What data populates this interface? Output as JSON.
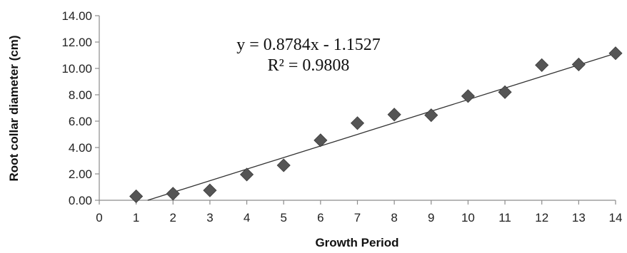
{
  "chart_data": {
    "type": "scatter",
    "title": "",
    "xlabel": "Growth Period",
    "ylabel": "Root collar diameter (cm)",
    "xlim": [
      0,
      14
    ],
    "ylim": [
      0,
      14
    ],
    "x_ticks": [
      "0",
      "1",
      "2",
      "3",
      "4",
      "5",
      "6",
      "7",
      "8",
      "9",
      "10",
      "11",
      "12",
      "13",
      "14"
    ],
    "y_ticks": [
      "0.00",
      "2.00",
      "4.00",
      "6.00",
      "8.00",
      "10.00",
      "12.00",
      "14.00"
    ],
    "grid": false,
    "legend": "none",
    "marker": "diamond",
    "marker_color": "#555555",
    "trendline_color": "#333333",
    "series": [
      {
        "x": [
          1,
          2,
          3,
          4,
          5,
          6,
          7,
          8,
          9,
          10,
          11,
          12,
          13,
          14
        ],
        "y": [
          0.3,
          0.5,
          0.75,
          1.95,
          2.65,
          4.55,
          5.85,
          6.5,
          6.45,
          7.9,
          8.2,
          10.25,
          10.3,
          11.15
        ]
      }
    ],
    "trendline": {
      "slope": 0.8784,
      "intercept": -1.1527,
      "equation": "y = 0.8784x  - 1.1527",
      "r2": "R² = 0.9808"
    }
  }
}
